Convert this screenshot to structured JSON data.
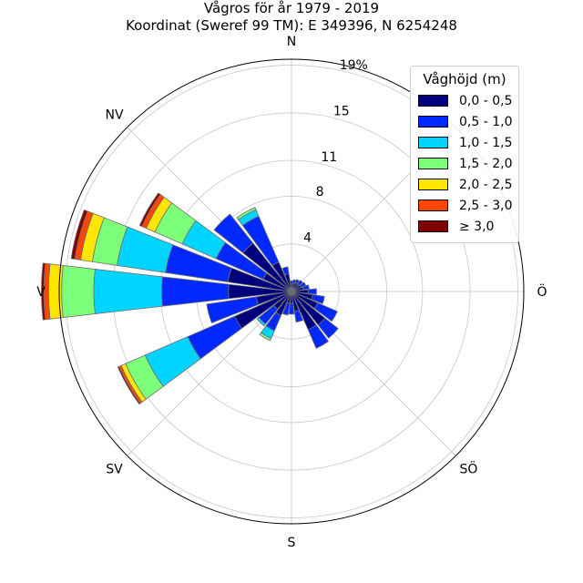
{
  "chart_data": {
    "type": "windrose",
    "title": "Vågros för år 1979 - 2019",
    "subtitle": "Koordinat (Sweref 99 TM): E 349396, N 6254248",
    "direction_labels": [
      "N",
      "NV",
      "V",
      "SV",
      "S",
      "SÖ",
      "Ö"
    ],
    "radial_ticks": [
      "4",
      "8",
      "11",
      "15",
      "19%"
    ],
    "radial_tick_values": [
      4,
      8,
      11,
      15,
      19
    ],
    "rmax": 19.5,
    "legend_title": "Våghöjd (m)",
    "legend_position": "top-right",
    "bins": [
      {
        "label": "0,0 - 0,5",
        "color": "#00007f"
      },
      {
        "label": "0,5 - 1,0",
        "color": "#0028ff"
      },
      {
        "label": "1,0 - 1,5",
        "color": "#00d4ff"
      },
      {
        "label": "1,5 - 2,0",
        "color": "#7cff79"
      },
      {
        "label": "2,0 - 2,5",
        "color": "#ffe600"
      },
      {
        "label": "2,5 - 3,0",
        "color": "#ff4600"
      },
      {
        "label": "≥ 3,0",
        "color": "#7f0000"
      }
    ],
    "sectors": [
      {
        "direction": 0,
        "values": [
          0.6,
          0.3,
          0,
          0,
          0,
          0,
          0
        ]
      },
      {
        "direction": 15,
        "values": [
          0.7,
          0.3,
          0,
          0,
          0,
          0,
          0
        ]
      },
      {
        "direction": 30,
        "values": [
          0.8,
          0.3,
          0,
          0,
          0,
          0,
          0
        ]
      },
      {
        "direction": 45,
        "values": [
          0.8,
          0.4,
          0,
          0,
          0,
          0,
          0
        ]
      },
      {
        "direction": 60,
        "values": [
          0.9,
          0.4,
          0,
          0,
          0,
          0,
          0
        ]
      },
      {
        "direction": 75,
        "values": [
          1.0,
          0.5,
          0,
          0,
          0,
          0,
          0
        ]
      },
      {
        "direction": 90,
        "values": [
          1.4,
          0.7,
          0,
          0,
          0,
          0,
          0
        ]
      },
      {
        "direction": 105,
        "values": [
          1.8,
          1.0,
          0,
          0,
          0,
          0,
          0
        ]
      },
      {
        "direction": 120,
        "values": [
          2.4,
          1.8,
          0,
          0,
          0,
          0,
          0
        ]
      },
      {
        "direction": 135,
        "values": [
          3.6,
          1.4,
          0,
          0,
          0,
          0,
          0
        ]
      },
      {
        "direction": 150,
        "values": [
          3.5,
          1.7,
          0,
          0,
          0,
          0,
          0
        ]
      },
      {
        "direction": 165,
        "values": [
          1.7,
          0.9,
          0,
          0,
          0,
          0,
          0
        ]
      },
      {
        "direction": 180,
        "values": [
          1.0,
          0.9,
          0,
          0,
          0,
          0,
          0
        ]
      },
      {
        "direction": 195,
        "values": [
          1.0,
          1.0,
          0,
          0,
          0,
          0,
          0
        ]
      },
      {
        "direction": 210,
        "values": [
          2.2,
          1.4,
          0.7,
          0.2,
          0,
          0,
          0
        ]
      },
      {
        "direction": 225,
        "values": [
          1.9,
          1.6,
          0.2,
          0,
          0,
          0,
          0
        ]
      },
      {
        "direction": 240,
        "values": [
          5.2,
          4.3,
          3.9,
          1.8,
          0.4,
          0.2,
          0.1
        ]
      },
      {
        "direction": 255,
        "values": [
          3.0,
          4.2,
          0,
          0,
          0,
          0,
          0
        ]
      },
      {
        "direction": 270,
        "values": [
          5.3,
          5.6,
          5.7,
          2.7,
          1.1,
          0.4,
          0.2
        ]
      },
      {
        "direction": 285,
        "values": [
          5.4,
          5.3,
          4.1,
          2.1,
          1.0,
          0.5,
          0.3
        ]
      },
      {
        "direction": 300,
        "values": [
          2.6,
          4.3,
          3.1,
          2.5,
          0.8,
          0.4,
          0.2
        ]
      },
      {
        "direction": 315,
        "values": [
          5.2,
          3.1,
          0,
          0,
          0,
          0,
          0
        ]
      },
      {
        "direction": 330,
        "values": [
          2.7,
          4.2,
          0.6,
          0.2,
          0,
          0,
          0
        ]
      },
      {
        "direction": 345,
        "values": [
          1.5,
          0.6,
          0,
          0,
          0,
          0,
          0
        ]
      }
    ]
  }
}
